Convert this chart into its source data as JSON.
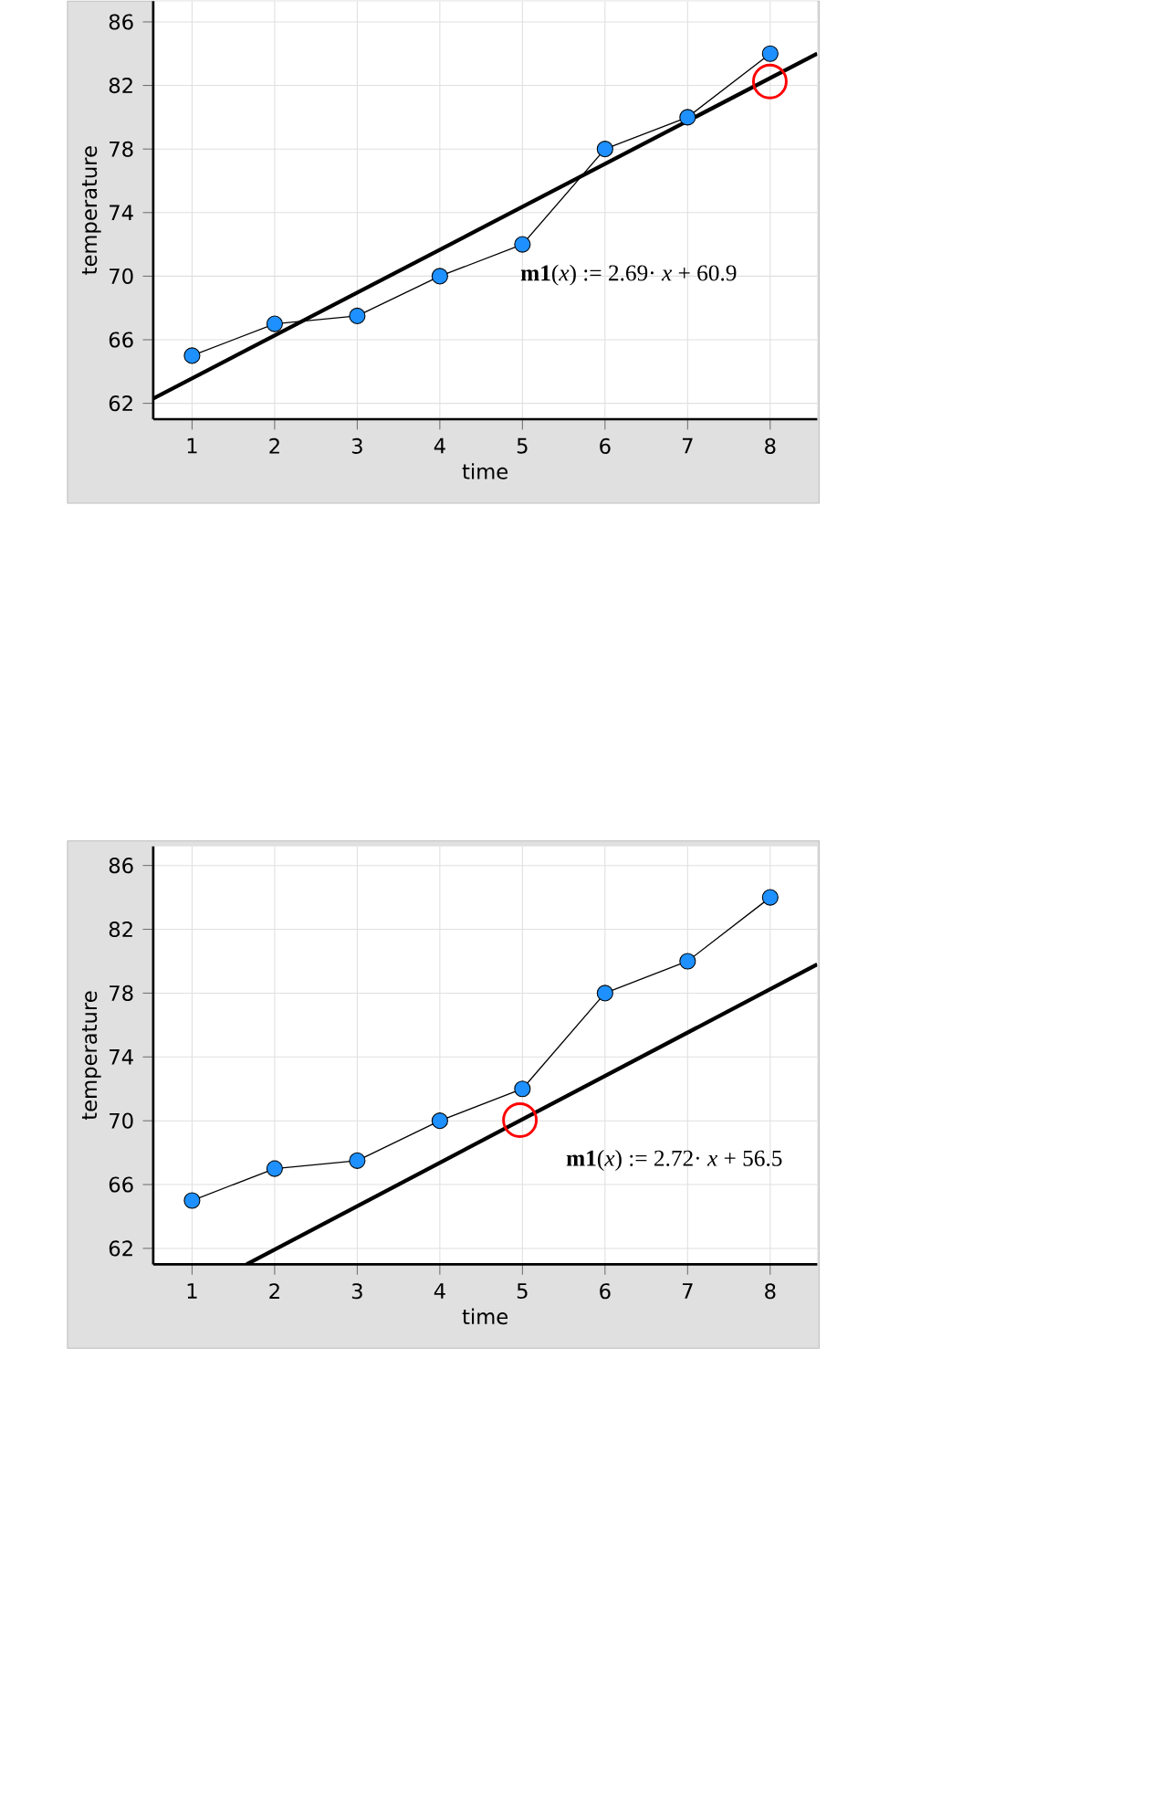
{
  "chart_data": [
    {
      "type": "line",
      "xlabel": "time",
      "ylabel": "temperature",
      "x": [
        1,
        2,
        3,
        4,
        5,
        6,
        7,
        8
      ],
      "xlim": [
        0.53,
        8.57
      ],
      "ylim": [
        61,
        87.3
      ],
      "xticks": [
        1,
        2,
        3,
        4,
        5,
        6,
        7,
        8
      ],
      "yticks": [
        62,
        66,
        70,
        74,
        78,
        82,
        86
      ],
      "grid": true,
      "series": [
        {
          "color": "#000000",
          "marker": "none",
          "values": [
            65,
            67,
            67.5,
            70,
            72,
            78,
            80,
            84
          ]
        },
        {
          "type": "scatter",
          "color": "#1e90ff",
          "marker": "circle",
          "values": [
            65,
            67,
            67.5,
            70,
            72,
            78,
            80,
            84
          ]
        },
        {
          "color": "#000000",
          "marker": "none",
          "x": [
            0.53,
            8.57
          ],
          "values": [
            62.3,
            84.0
          ]
        }
      ],
      "annotations": [
        "**m1**(*x*) := 2.69· *x* + 60.9"
      ]
    },
    {
      "type": "line",
      "xlabel": "time",
      "ylabel": "temperature",
      "x": [
        1,
        2,
        3,
        4,
        5,
        6,
        7,
        8
      ],
      "xlim": [
        0.53,
        8.57
      ],
      "ylim": [
        61,
        87.2
      ],
      "xticks": [
        1,
        2,
        3,
        4,
        5,
        6,
        7,
        8
      ],
      "yticks": [
        62,
        66,
        70,
        74,
        78,
        82,
        86
      ],
      "grid": true,
      "series": [
        {
          "color": "#000000",
          "marker": "none",
          "values": [
            65,
            67,
            67.5,
            70,
            72,
            78,
            80,
            84
          ]
        },
        {
          "type": "scatter",
          "color": "#1e90ff",
          "marker": "circle",
          "values": [
            65,
            67,
            67.5,
            70,
            72,
            78,
            80,
            84
          ]
        },
        {
          "color": "#000000",
          "marker": "none",
          "x": [
            1.66,
            8.57
          ],
          "values": [
            61.0,
            79.8
          ]
        }
      ],
      "annotations": [
        "**m1**(*x*) := 2.72· *x* + 56.5"
      ]
    }
  ]
}
